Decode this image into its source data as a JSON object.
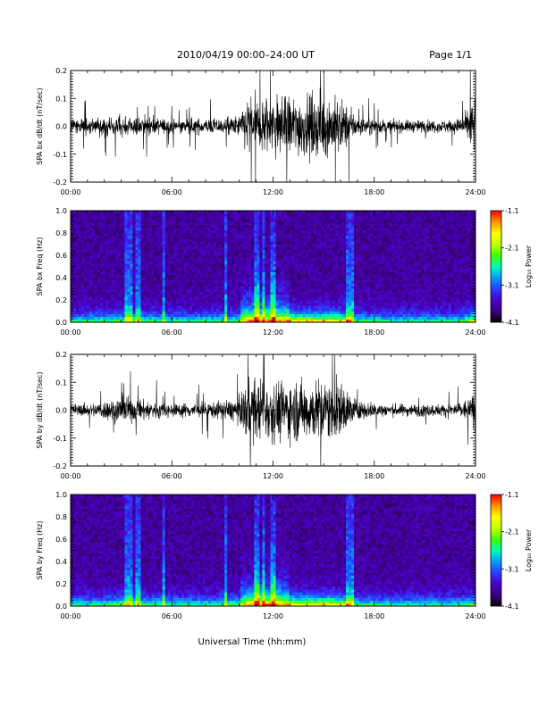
{
  "header": {
    "title": "2010/04/19   00:00–24:00 UT",
    "page": "Page 1/1"
  },
  "footer": {
    "xlabel": "Universal Time (hh:mm)"
  },
  "colors": {
    "trace": "#000000",
    "frame": "#000000",
    "spectrogram_floor": "#200030",
    "colormap": [
      "#000000",
      "#3b0080",
      "#4a00c8",
      "#2c3cff",
      "#00a0ff",
      "#00ffb0",
      "#40ff00",
      "#c8ff00",
      "#ffff00",
      "#ff9000",
      "#ff0000"
    ]
  },
  "chart_data": [
    {
      "id": "bx-dbdt",
      "type": "line",
      "ylabel": "SPA bx dB/dt (nT/sec)",
      "ylim": [
        -0.2,
        0.2
      ],
      "yticks": [
        "0.2",
        "0.1",
        "0.0",
        "-0.1",
        "-0.2"
      ],
      "xticks": [
        "00:00",
        "06:00",
        "12:00",
        "18:00",
        "24:00"
      ],
      "xlim_hours": [
        0,
        24
      ],
      "series": [
        {
          "hour": [
            0,
            1,
            2,
            3,
            4,
            5,
            6,
            7,
            8,
            9,
            10,
            10.5,
            11,
            12,
            13,
            14,
            15,
            16,
            16.5,
            17,
            18,
            19,
            20,
            21,
            22,
            23,
            23.5,
            24
          ],
          "amplitude": [
            0.05,
            0.05,
            0.06,
            0.07,
            0.06,
            0.06,
            0.04,
            0.05,
            0.05,
            0.05,
            0.07,
            0.2,
            0.2,
            0.2,
            0.2,
            0.2,
            0.2,
            0.18,
            0.12,
            0.06,
            0.05,
            0.04,
            0.04,
            0.04,
            0.04,
            0.05,
            0.08,
            0.2
          ]
        }
      ]
    },
    {
      "id": "bx-freq",
      "type": "heatmap",
      "ylabel": "SPA bx Freq (Hz)",
      "ylim": [
        0.0,
        1.0
      ],
      "yticks": [
        "1.0",
        "0.8",
        "0.6",
        "0.4",
        "0.2",
        "0.0"
      ],
      "xticks": [
        "00:00",
        "06:00",
        "12:00",
        "18:00",
        "24:00"
      ],
      "xlim_hours": [
        0,
        24
      ],
      "colorbar": {
        "label": "Log₁₀ Power",
        "range": [
          -4.1,
          -1.1
        ],
        "ticks": [
          "-1.1",
          "-2.1",
          "-3.1",
          "-4.1"
        ]
      }
    },
    {
      "id": "by-dbdt",
      "type": "line",
      "ylabel": "SPA by dB/dt (nT/sec)",
      "ylim": [
        -0.2,
        0.2
      ],
      "yticks": [
        "0.2",
        "0.1",
        "0.0",
        "-0.1",
        "-0.2"
      ],
      "xticks": [
        "00:00",
        "06:00",
        "12:00",
        "18:00",
        "24:00"
      ],
      "xlim_hours": [
        0,
        24
      ],
      "series": [
        {
          "hour": [
            0,
            1,
            2,
            3,
            4,
            5,
            6,
            7,
            8,
            9,
            10,
            10.5,
            11,
            12,
            13,
            14,
            15,
            16,
            16.5,
            17,
            18,
            19,
            20,
            21,
            22,
            23,
            23.5,
            24
          ],
          "amplitude": [
            0.04,
            0.04,
            0.06,
            0.09,
            0.07,
            0.06,
            0.04,
            0.05,
            0.05,
            0.06,
            0.08,
            0.2,
            0.2,
            0.2,
            0.19,
            0.2,
            0.2,
            0.19,
            0.12,
            0.06,
            0.05,
            0.04,
            0.04,
            0.04,
            0.04,
            0.05,
            0.07,
            0.12
          ]
        }
      ]
    },
    {
      "id": "by-freq",
      "type": "heatmap",
      "ylabel": "SPA by Freq (Hz)",
      "ylim": [
        0.0,
        1.0
      ],
      "yticks": [
        "1.0",
        "0.8",
        "0.6",
        "0.4",
        "0.2",
        "0.0"
      ],
      "xticks": [
        "00:00",
        "06:00",
        "12:00",
        "18:00",
        "24:00"
      ],
      "xlim_hours": [
        0,
        24
      ],
      "colorbar": {
        "label": "Log₁₀ Power",
        "range": [
          -4.1,
          -1.1
        ],
        "ticks": [
          "-1.1",
          "-2.1",
          "-3.1",
          "-4.1"
        ]
      }
    }
  ]
}
